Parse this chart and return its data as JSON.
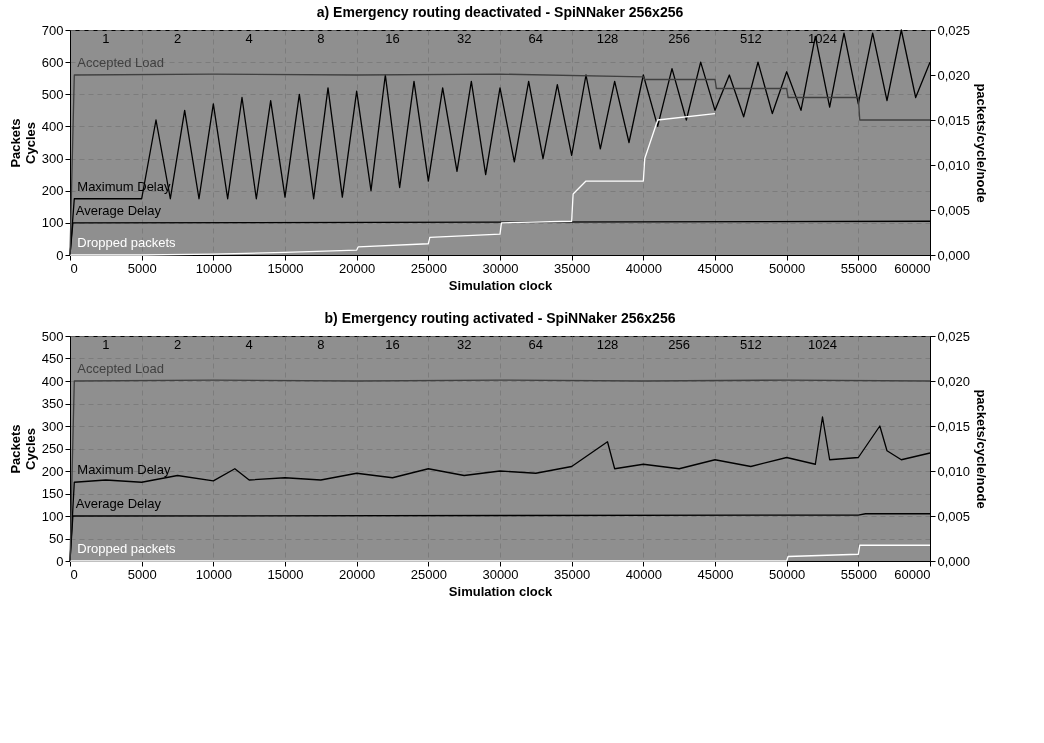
{
  "chart_data": [
    {
      "type": "line",
      "title": "a) Emergency routing deactivated - SpiNNaker 256x256",
      "xlabel": "Simulation clock",
      "ylabel": "Packets Cycles",
      "y2label": "packets/cycle/node",
      "xlim": [
        0,
        60000
      ],
      "xticks": [
        0,
        5000,
        10000,
        15000,
        20000,
        25000,
        30000,
        35000,
        40000,
        45000,
        50000,
        55000,
        60000
      ],
      "ylim": [
        0,
        700
      ],
      "yticks": [
        0,
        100,
        200,
        300,
        400,
        500,
        600,
        700
      ],
      "y2lim": [
        0,
        0.025
      ],
      "y2ticks": [
        {
          "value": 0,
          "label": "0,000"
        },
        {
          "value": 0.005,
          "label": "0,005"
        },
        {
          "value": 0.01,
          "label": "0,010"
        },
        {
          "value": 0.015,
          "label": "0,015"
        },
        {
          "value": 0.02,
          "label": "0,020"
        },
        {
          "value": 0.025,
          "label": "0,025"
        }
      ],
      "grid": true,
      "legend": false,
      "line_style": "solid",
      "marker": "none",
      "series": [
        {
          "name": "Accepted Load",
          "color": "#404040",
          "axis": "y2",
          "x": [
            0,
            300,
            10000,
            20000,
            30000,
            40000,
            40100,
            45000,
            45100,
            50000,
            50100,
            55000,
            55100,
            60000
          ],
          "values": [
            0,
            0.02,
            0.0201,
            0.02,
            0.0201,
            0.0198,
            0.0195,
            0.0195,
            0.0185,
            0.0185,
            0.0175,
            0.0175,
            0.015,
            0.015
          ]
        },
        {
          "name": "Maximum Delay",
          "color": "#000000",
          "x": [
            0,
            300,
            5000,
            6000,
            7000,
            8000,
            9000,
            10000,
            11000,
            12000,
            13000,
            14000,
            15000,
            16000,
            17000,
            18000,
            19000,
            20000,
            21000,
            22000,
            23000,
            24000,
            25000,
            26000,
            27000,
            28000,
            29000,
            30000,
            31000,
            32000,
            33000,
            34000,
            35000,
            36000,
            37000,
            38000,
            39000,
            40000,
            41000,
            42000,
            43000,
            44000,
            45000,
            46000,
            47000,
            48000,
            49000,
            50000,
            51000,
            52000,
            53000,
            54000,
            55000,
            56000,
            57000,
            58000,
            59000,
            60000
          ],
          "values": [
            0,
            175,
            175,
            420,
            175,
            450,
            175,
            470,
            175,
            490,
            175,
            480,
            180,
            500,
            175,
            520,
            180,
            510,
            200,
            560,
            210,
            540,
            230,
            520,
            260,
            540,
            250,
            520,
            290,
            540,
            300,
            530,
            310,
            560,
            330,
            540,
            350,
            560,
            400,
            580,
            420,
            600,
            450,
            560,
            430,
            600,
            440,
            570,
            450,
            680,
            460,
            690,
            470,
            690,
            480,
            700,
            490,
            600
          ]
        },
        {
          "name": "Average Delay",
          "color": "#000000",
          "x": [
            0,
            200,
            30000,
            60000
          ],
          "values": [
            0,
            100,
            102,
            105
          ]
        },
        {
          "name": "Dropped packets",
          "color": "#ffffff",
          "x": [
            0,
            300,
            5000,
            10000,
            15000,
            20000,
            20100,
            25000,
            25100,
            30000,
            30100,
            35000,
            35100,
            36000,
            40000,
            40100,
            41000,
            45000
          ],
          "values": [
            0,
            0,
            0,
            3,
            8,
            15,
            25,
            35,
            55,
            65,
            100,
            105,
            190,
            230,
            230,
            300,
            420,
            440
          ]
        }
      ],
      "annotations": [
        "1",
        "2",
        "4",
        "8",
        "16",
        "32",
        "64",
        "128",
        "256",
        "512",
        "1024"
      ]
    },
    {
      "type": "line",
      "title": "b) Emergency routing activated - SpiNNaker 256x256",
      "xlabel": "Simulation clock",
      "ylabel": "Packets Cycles",
      "y2label": "packets/cycle/node",
      "xlim": [
        0,
        60000
      ],
      "xticks": [
        0,
        5000,
        10000,
        15000,
        20000,
        25000,
        30000,
        35000,
        40000,
        45000,
        50000,
        55000,
        60000
      ],
      "ylim": [
        0,
        500
      ],
      "yticks": [
        0,
        50,
        100,
        150,
        200,
        250,
        300,
        350,
        400,
        450,
        500
      ],
      "y2lim": [
        0,
        0.025
      ],
      "y2ticks": [
        {
          "value": 0,
          "label": "0,000"
        },
        {
          "value": 0.005,
          "label": "0,005"
        },
        {
          "value": 0.01,
          "label": "0,010"
        },
        {
          "value": 0.015,
          "label": "0,015"
        },
        {
          "value": 0.02,
          "label": "0,020"
        },
        {
          "value": 0.025,
          "label": "0,025"
        }
      ],
      "grid": true,
      "legend": false,
      "line_style": "solid",
      "marker": "none",
      "series": [
        {
          "name": "Accepted Load",
          "color": "#404040",
          "axis": "y2",
          "x": [
            0,
            300,
            10000,
            20000,
            30000,
            40000,
            50000,
            60000
          ],
          "values": [
            0,
            0.02,
            0.0201,
            0.02,
            0.0201,
            0.02,
            0.0201,
            0.02
          ]
        },
        {
          "name": "Maximum Delay",
          "color": "#000000",
          "x": [
            0,
            300,
            2500,
            5000,
            7500,
            10000,
            11500,
            12500,
            15000,
            17500,
            20000,
            22500,
            25000,
            27500,
            30000,
            32500,
            35000,
            37500,
            38000,
            40000,
            42500,
            45000,
            47500,
            50000,
            52000,
            52500,
            53000,
            55000,
            56500,
            57000,
            58000,
            60000
          ],
          "values": [
            0,
            175,
            180,
            175,
            190,
            178,
            205,
            180,
            185,
            180,
            195,
            185,
            205,
            190,
            200,
            195,
            210,
            265,
            205,
            215,
            205,
            225,
            210,
            230,
            215,
            320,
            225,
            230,
            300,
            245,
            225,
            240
          ]
        },
        {
          "name": "Average Delay",
          "color": "#000000",
          "x": [
            0,
            200,
            55000,
            55500,
            60000
          ],
          "values": [
            0,
            100,
            102,
            105,
            105
          ]
        },
        {
          "name": "Dropped packets",
          "color": "#ffffff",
          "x": [
            0,
            300,
            40000,
            50000,
            50100,
            55000,
            55100,
            60000
          ],
          "values": [
            0,
            0,
            0,
            0,
            10,
            15,
            35,
            35
          ]
        }
      ],
      "annotations": [
        "1",
        "2",
        "4",
        "8",
        "16",
        "32",
        "64",
        "128",
        "256",
        "512",
        "1024"
      ]
    }
  ]
}
